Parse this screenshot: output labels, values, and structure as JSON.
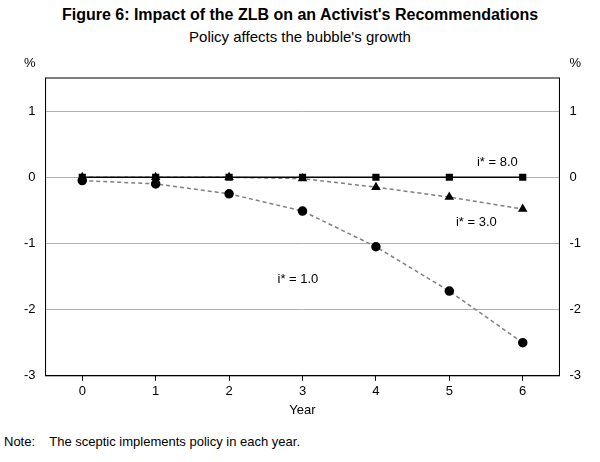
{
  "chart_data": {
    "type": "line",
    "title": "Figure 6: Impact of the ZLB on an Activist's Recommendations",
    "subtitle": "Policy affects the bubble's growth",
    "x_label": "Year",
    "y_label": "%",
    "note": "Note:    The sceptic implements policy in each year.",
    "x": [
      0,
      1,
      2,
      3,
      4,
      5,
      6
    ],
    "series": [
      {
        "name": "i* = 8.0",
        "color": "#000000",
        "marker": "square",
        "line_style": "solid",
        "values": [
          0,
          0,
          0,
          0,
          0,
          0,
          0
        ]
      },
      {
        "name": "i* = 3.0",
        "color": "#808080",
        "marker": "triangle",
        "line_style": "dashed",
        "values": [
          0,
          0,
          0,
          -0.02,
          -0.15,
          -0.3,
          -0.48
        ]
      },
      {
        "name": "i* = 1.0",
        "color": "#808080",
        "marker": "circle",
        "line_style": "dashed",
        "values": [
          -0.05,
          -0.1,
          -0.25,
          -0.51,
          -1.05,
          -1.72,
          -2.5
        ]
      }
    ],
    "xlim": [
      -0.5,
      6.5
    ],
    "xticks": [
      0,
      1,
      2,
      3,
      4,
      5,
      6
    ],
    "ylim": [
      -3,
      1.5
    ],
    "yticks": [
      -3,
      -2,
      -1,
      0,
      1
    ],
    "grid": true
  }
}
